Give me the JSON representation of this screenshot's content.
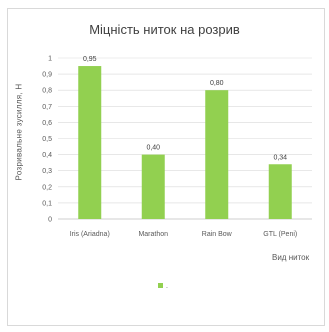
{
  "chart_data": {
    "type": "bar",
    "title": "Міцність ниток на розрив",
    "ylabel": "Розривальне зусилля, Н",
    "xlabel": "Вид ниток",
    "categories": [
      "Iris (Ariadna)",
      "Marathon",
      "Rain Bow",
      "GTL (Peni)"
    ],
    "values": [
      0.95,
      0.4,
      0.8,
      0.34
    ],
    "data_labels": [
      "0,95",
      "0,40",
      "0,80",
      "0,34"
    ],
    "ylim": [
      0,
      1
    ],
    "y_ticks": [
      "0",
      "0,1",
      "0,2",
      "0,3",
      "0,4",
      "0,5",
      "0,6",
      "0,7",
      "0,8",
      "0,9",
      "1"
    ],
    "grid": true,
    "legend": {
      "placement": "bottom",
      "entries": [
        "."
      ]
    },
    "colors": {
      "bar": "#92d050",
      "grid": "#d9d9d9",
      "axis": "#bfbfbf"
    }
  }
}
